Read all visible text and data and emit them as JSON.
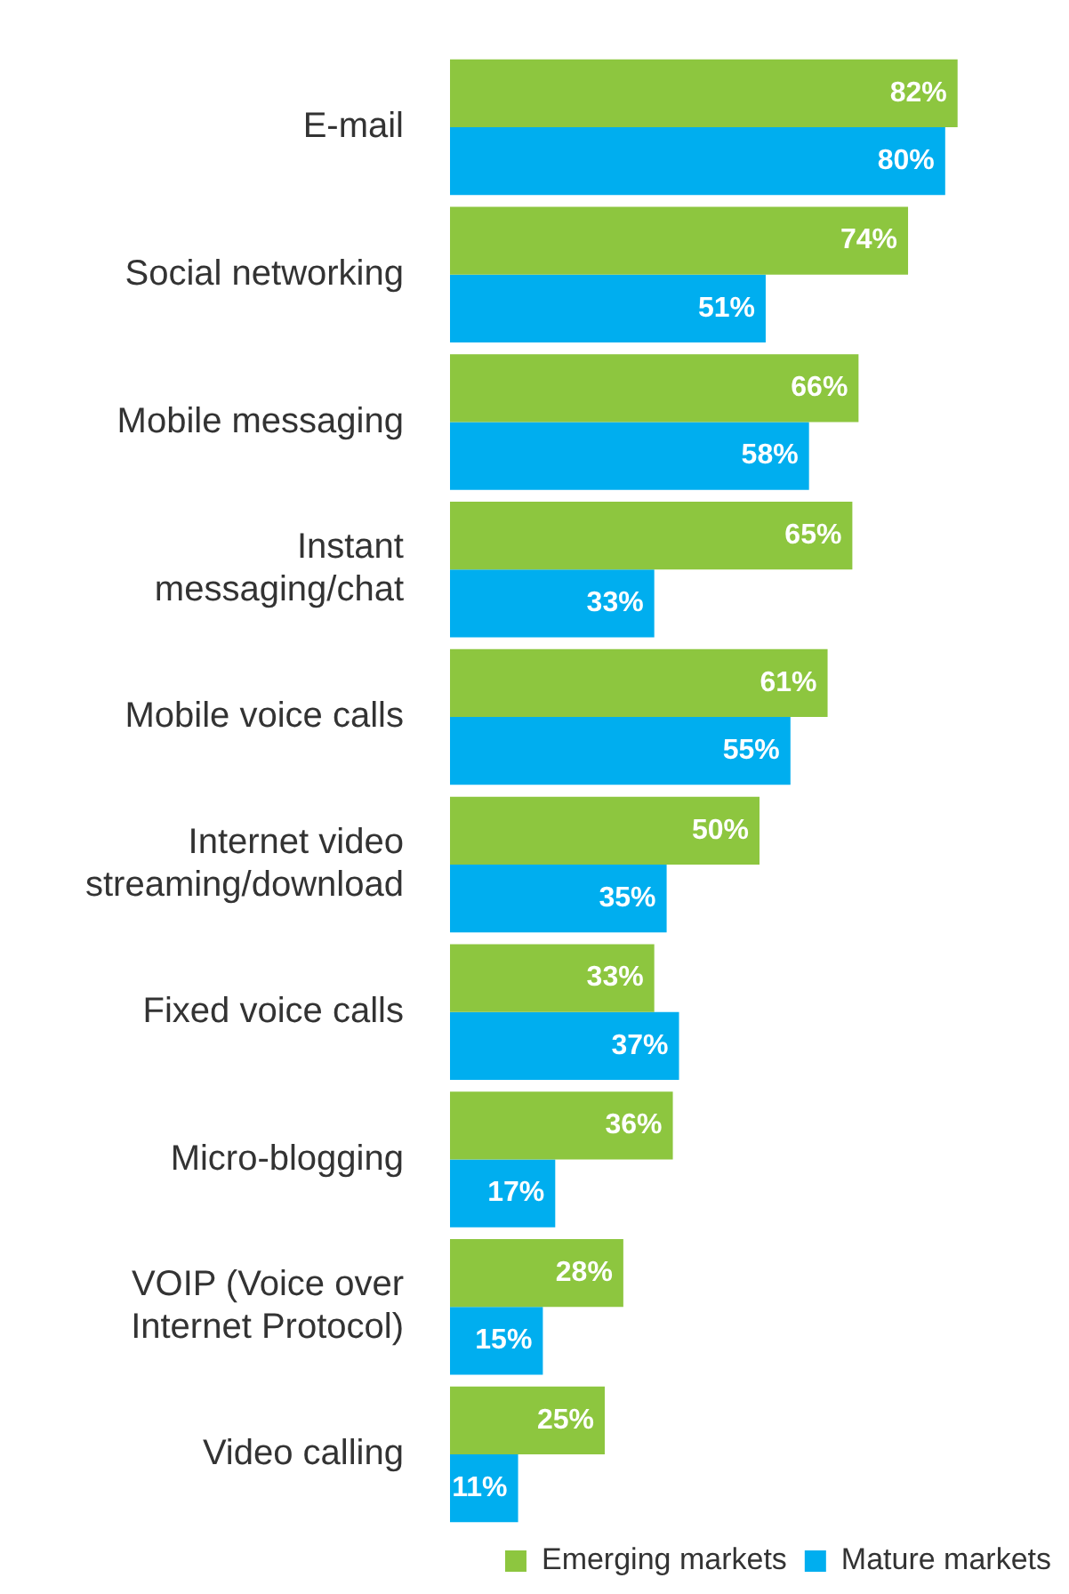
{
  "chart_data": {
    "type": "bar",
    "orientation": "horizontal",
    "categories": [
      "E-mail",
      "Social networking",
      "Mobile messaging",
      "Instant messaging/chat",
      "Mobile voice calls",
      "Internet video streaming/download",
      "Fixed voice calls",
      "Micro-blogging",
      "VOIP (Voice over Internet Protocol)",
      "Video calling"
    ],
    "series": [
      {
        "name": "Emerging markets",
        "color": "#8dc63f",
        "values": [
          82,
          74,
          66,
          65,
          61,
          50,
          33,
          36,
          28,
          25
        ],
        "value_labels": [
          "82%",
          "74%",
          "66%",
          "65%",
          "61%",
          "50%",
          "33%",
          "36%",
          "28%",
          "25%"
        ]
      },
      {
        "name": "Mature markets",
        "color": "#00aeef",
        "values": [
          80,
          51,
          58,
          33,
          55,
          35,
          37,
          17,
          15,
          11
        ],
        "value_labels": [
          "80%",
          "51%",
          "58%",
          "33%",
          "55%",
          "35%",
          "37%",
          "17%",
          "15%",
          "11%"
        ]
      }
    ],
    "legend": "bottom right",
    "tick_labels": "y"
  }
}
